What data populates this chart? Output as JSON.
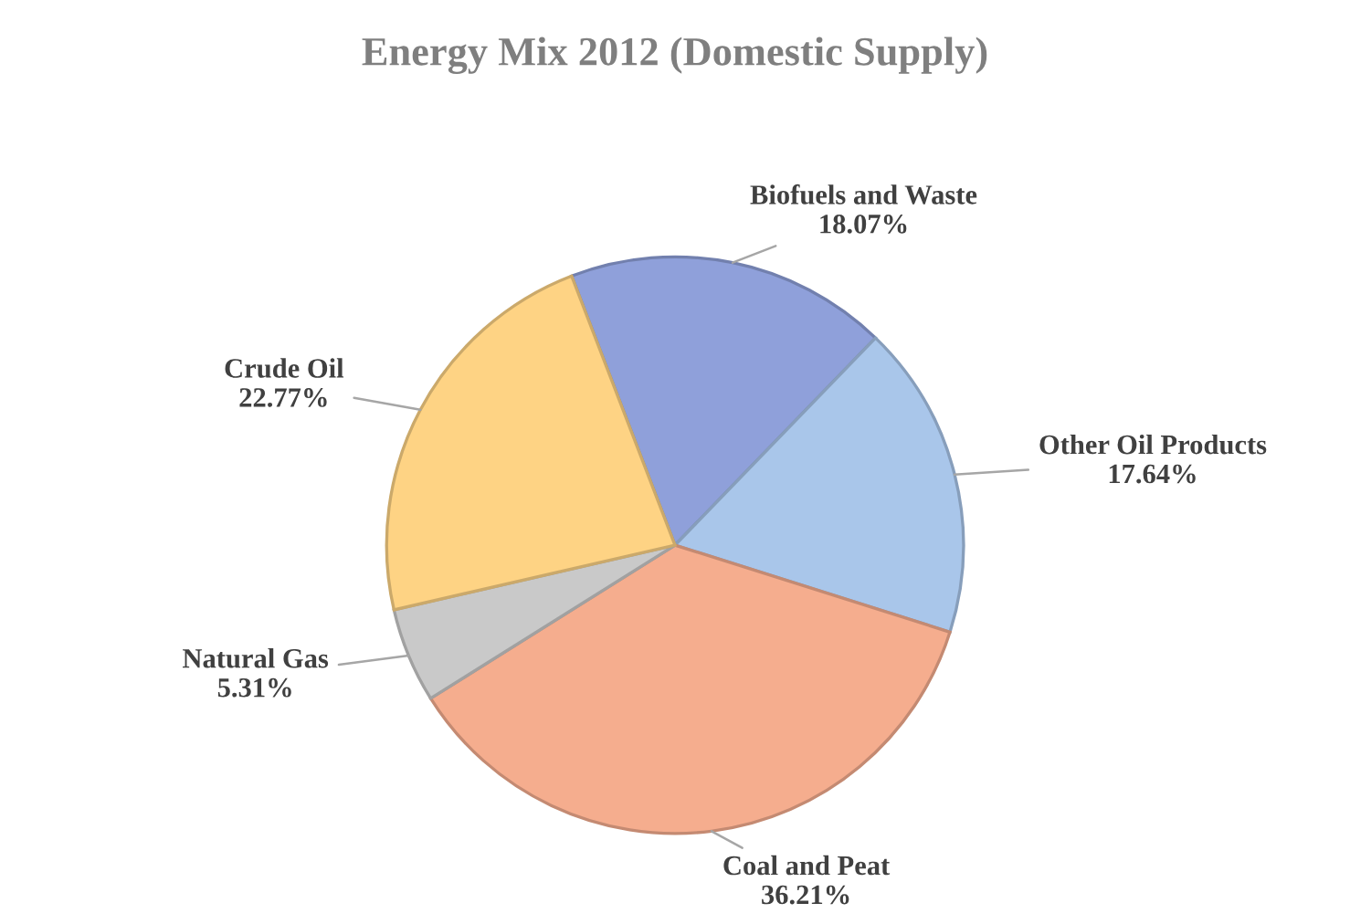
{
  "chart_data": {
    "type": "pie",
    "title": "Energy Mix 2012 (Domestic Supply)",
    "categories": [
      "Biofuels and Waste",
      "Other Oil Products",
      "Coal and Peat",
      "Natural Gas",
      "Crude Oil"
    ],
    "values": [
      18.07,
      17.64,
      36.21,
      5.31,
      22.77
    ],
    "value_labels": [
      "18.07%",
      "17.64%",
      "36.21%",
      "5.31%",
      "22.77%"
    ],
    "colors": [
      "#8fa0da",
      "#a9c6ea",
      "#f5ad8e",
      "#c9c9c9",
      "#fed384"
    ],
    "legend": false
  }
}
